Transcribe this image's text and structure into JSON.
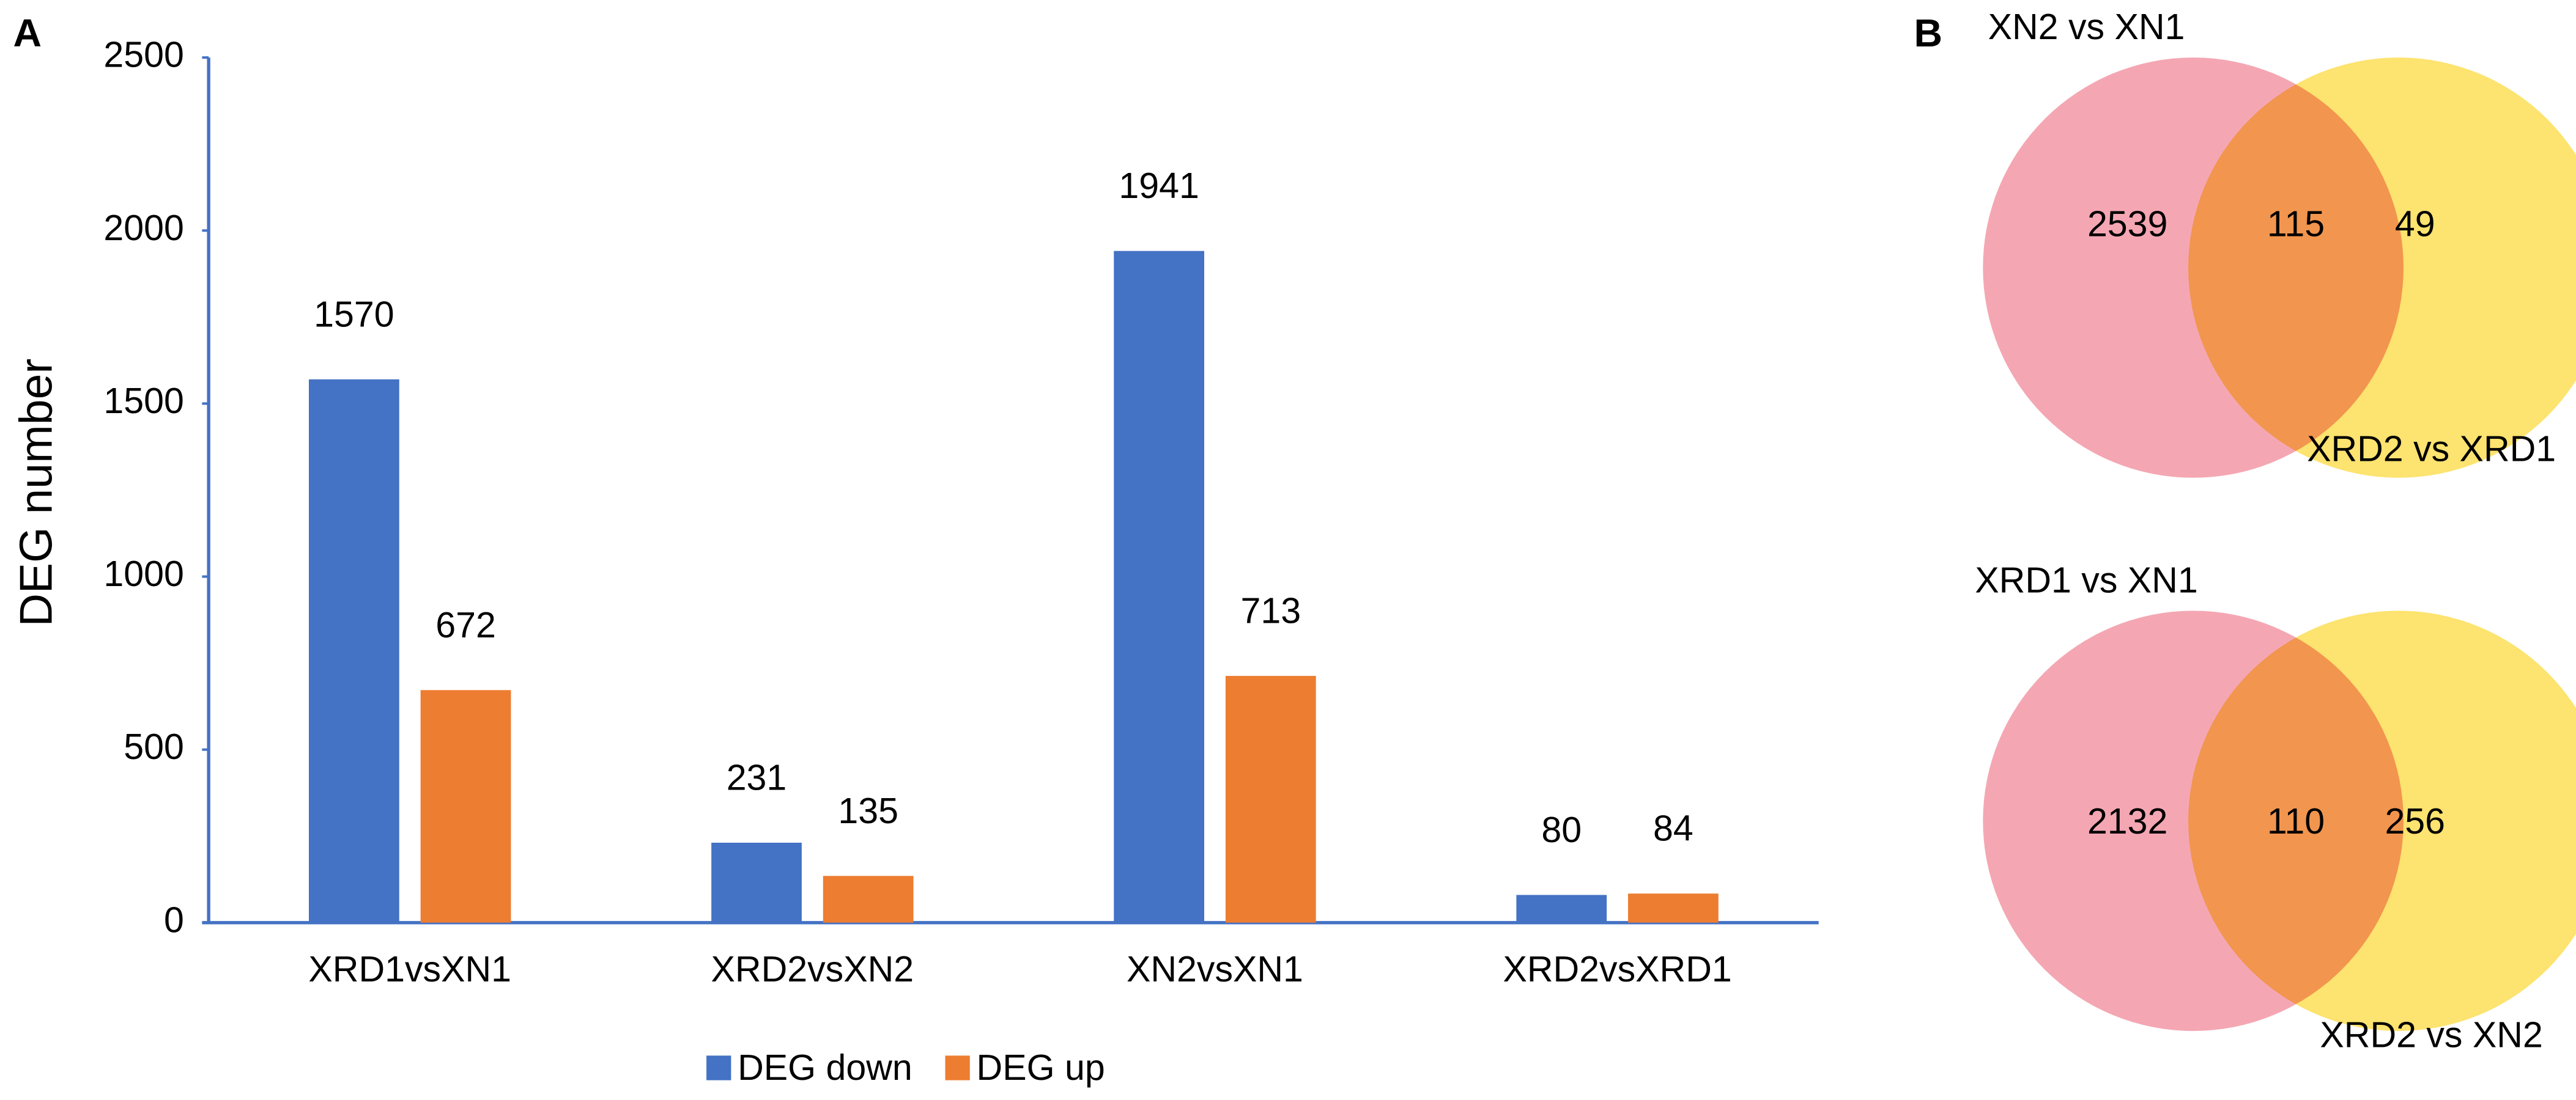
{
  "chart_data": [
    {
      "type": "bar",
      "panel_label": "A",
      "y_label": "DEG number",
      "categories": [
        "XRD1vsXN1",
        "XRD2vsXN2",
        "XN2vsXN1",
        "XRD2vsXRD1"
      ],
      "series": [
        {
          "name": "DEG down",
          "color": "#4472c4",
          "values": [
            1570,
            231,
            1941,
            80
          ]
        },
        {
          "name": "DEG up",
          "color": "#ed7d31",
          "values": [
            672,
            135,
            713,
            84
          ]
        }
      ],
      "ylim": [
        0,
        2500
      ],
      "yticks": [
        0,
        500,
        1000,
        1500,
        2000,
        2500
      ],
      "grid": false,
      "legend": "bottom"
    },
    {
      "type": "venn",
      "panel_label": "B",
      "sets": [
        {
          "name": "XN2 vs XN1",
          "color": "#f4a7b3"
        },
        {
          "name": "XRD2 vs XRD1",
          "color": "#fde36f"
        }
      ],
      "values": [
        2539,
        115,
        49
      ]
    },
    {
      "type": "venn",
      "sets": [
        {
          "name": "XRD1 vs XN1",
          "color": "#f4a7b3"
        },
        {
          "name": "XRD2 vs XN2",
          "color": "#fde36f"
        }
      ],
      "values": [
        2132,
        110,
        256
      ]
    }
  ]
}
